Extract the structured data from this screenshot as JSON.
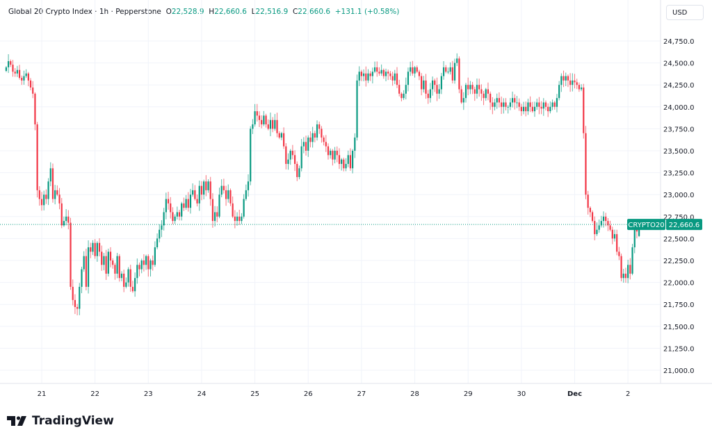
{
  "header": {
    "symbol": "Global 20 Crypto Index",
    "interval": "1h",
    "exchange": "Pepperstone",
    "open_label": "O",
    "open": "22,528.9",
    "high_label": "H",
    "high": "22,660.6",
    "low_label": "L",
    "low": "22,516.9",
    "close_label": "C",
    "close": "22,660.6",
    "change": "+131.1 (+0.58%)"
  },
  "currency_button": "USD",
  "brand": "TradingView",
  "colors": {
    "up": "#089981",
    "down": "#f23645",
    "grid": "#f0f3fa"
  },
  "chart_data": {
    "type": "candlestick",
    "interval": "1h",
    "first_candle": "Nov 20 08:00",
    "ylim": [
      20875,
      24900
    ],
    "y_ticks": [
      "21,000.0",
      "21,250.0",
      "21,500.0",
      "21,750.0",
      "22,000.0",
      "22,250.0",
      "22,500.0",
      "22,750.0",
      "23,000.0",
      "23,250.0",
      "23,500.0",
      "23,750.0",
      "24,000.0",
      "24,250.0",
      "24,500.0",
      "24,750.0"
    ],
    "y_tick_values": [
      21000,
      21250,
      21500,
      21750,
      22000,
      22250,
      22500,
      22750,
      23000,
      23250,
      23500,
      23750,
      24000,
      24250,
      24500,
      24750
    ],
    "x_ticks": [
      "21",
      "22",
      "23",
      "24",
      "25",
      "26",
      "27",
      "28",
      "29",
      "30",
      "Dec",
      "2"
    ],
    "grid": true,
    "last_price": {
      "label": "CRYPTO20",
      "value": "22,660.6",
      "price": 22660.6
    },
    "last_candle": {
      "o": 22528.9,
      "h": 22660.6,
      "l": 22516.9,
      "c": 22660.6
    },
    "closes": [
      24450,
      24520,
      24480,
      24400,
      24380,
      24420,
      24330,
      24300,
      24350,
      24380,
      24300,
      24220,
      24150,
      23800,
      23050,
      22950,
      22880,
      23000,
      22950,
      23150,
      23300,
      22950,
      23050,
      23000,
      22900,
      22650,
      22700,
      22750,
      22680,
      21950,
      21800,
      21720,
      21700,
      21950,
      22150,
      22300,
      21950,
      22400,
      22350,
      22450,
      22300,
      22450,
      22350,
      22200,
      22300,
      22100,
      22350,
      22250,
      22200,
      22100,
      22300,
      22050,
      22100,
      21950,
      22000,
      22150,
      21950,
      21900,
      22050,
      22200,
      22150,
      22250,
      22200,
      22300,
      22150,
      22250,
      22200,
      22400,
      22500,
      22600,
      22650,
      22800,
      22950,
      22900,
      22800,
      22700,
      22750,
      22800,
      22750,
      22900,
      22850,
      22950,
      22850,
      23000,
      23050,
      22950,
      22900,
      23100,
      23000,
      23150,
      23050,
      23150,
      22950,
      22700,
      22800,
      22750,
      23000,
      23100,
      23050,
      22950,
      23050,
      22900,
      22750,
      22700,
      22750,
      22700,
      22750,
      22950,
      23050,
      23150,
      23750,
      23800,
      23950,
      23900,
      23850,
      23800,
      23900,
      23800,
      23750,
      23850,
      23750,
      23850,
      23700,
      23650,
      23700,
      23550,
      23350,
      23400,
      23500,
      23450,
      23350,
      23200,
      23300,
      23550,
      23600,
      23500,
      23650,
      23600,
      23700,
      23650,
      23800,
      23750,
      23650,
      23600,
      23550,
      23450,
      23500,
      23400,
      23500,
      23450,
      23350,
      23400,
      23300,
      23350,
      23450,
      23300,
      23500,
      23650,
      24300,
      24400,
      24350,
      24380,
      24300,
      24380,
      24350,
      24400,
      24450,
      24400,
      24380,
      24420,
      24350,
      24400,
      24380,
      24350,
      24300,
      24380,
      24250,
      24150,
      24100,
      24150,
      24250,
      24400,
      24450,
      24380,
      24450,
      24400,
      24350,
      24200,
      24300,
      24150,
      24100,
      24200,
      24300,
      24250,
      24150,
      24200,
      24350,
      24450,
      24400,
      24400,
      24450,
      24300,
      24500,
      24550,
      24200,
      24050,
      24100,
      24250,
      24200,
      24250,
      24200,
      24150,
      24250,
      24200,
      24150,
      24100,
      24200,
      24150,
      24050,
      24000,
      24050,
      24100,
      24050,
      24000,
      24050,
      24000,
      24000,
      24050,
      24100,
      24050,
      24050,
      24000,
      23950,
      24000,
      23950,
      24050,
      24000,
      23950,
      24000,
      24050,
      24000,
      23980,
      24050,
      24000,
      23950,
      24000,
      24050,
      24000,
      24100,
      24250,
      24350,
      24300,
      24350,
      24300,
      24250,
      24300,
      24280,
      24250,
      24200,
      24220,
      23700,
      23000,
      22850,
      22800,
      22700,
      22550,
      22600,
      22650,
      22700,
      22750,
      22700,
      22650,
      22600,
      22500,
      22550,
      22350,
      22300,
      22050,
      22100,
      22050,
      22200,
      22100,
      22400,
      22600,
      22580,
      22660.6
    ]
  }
}
